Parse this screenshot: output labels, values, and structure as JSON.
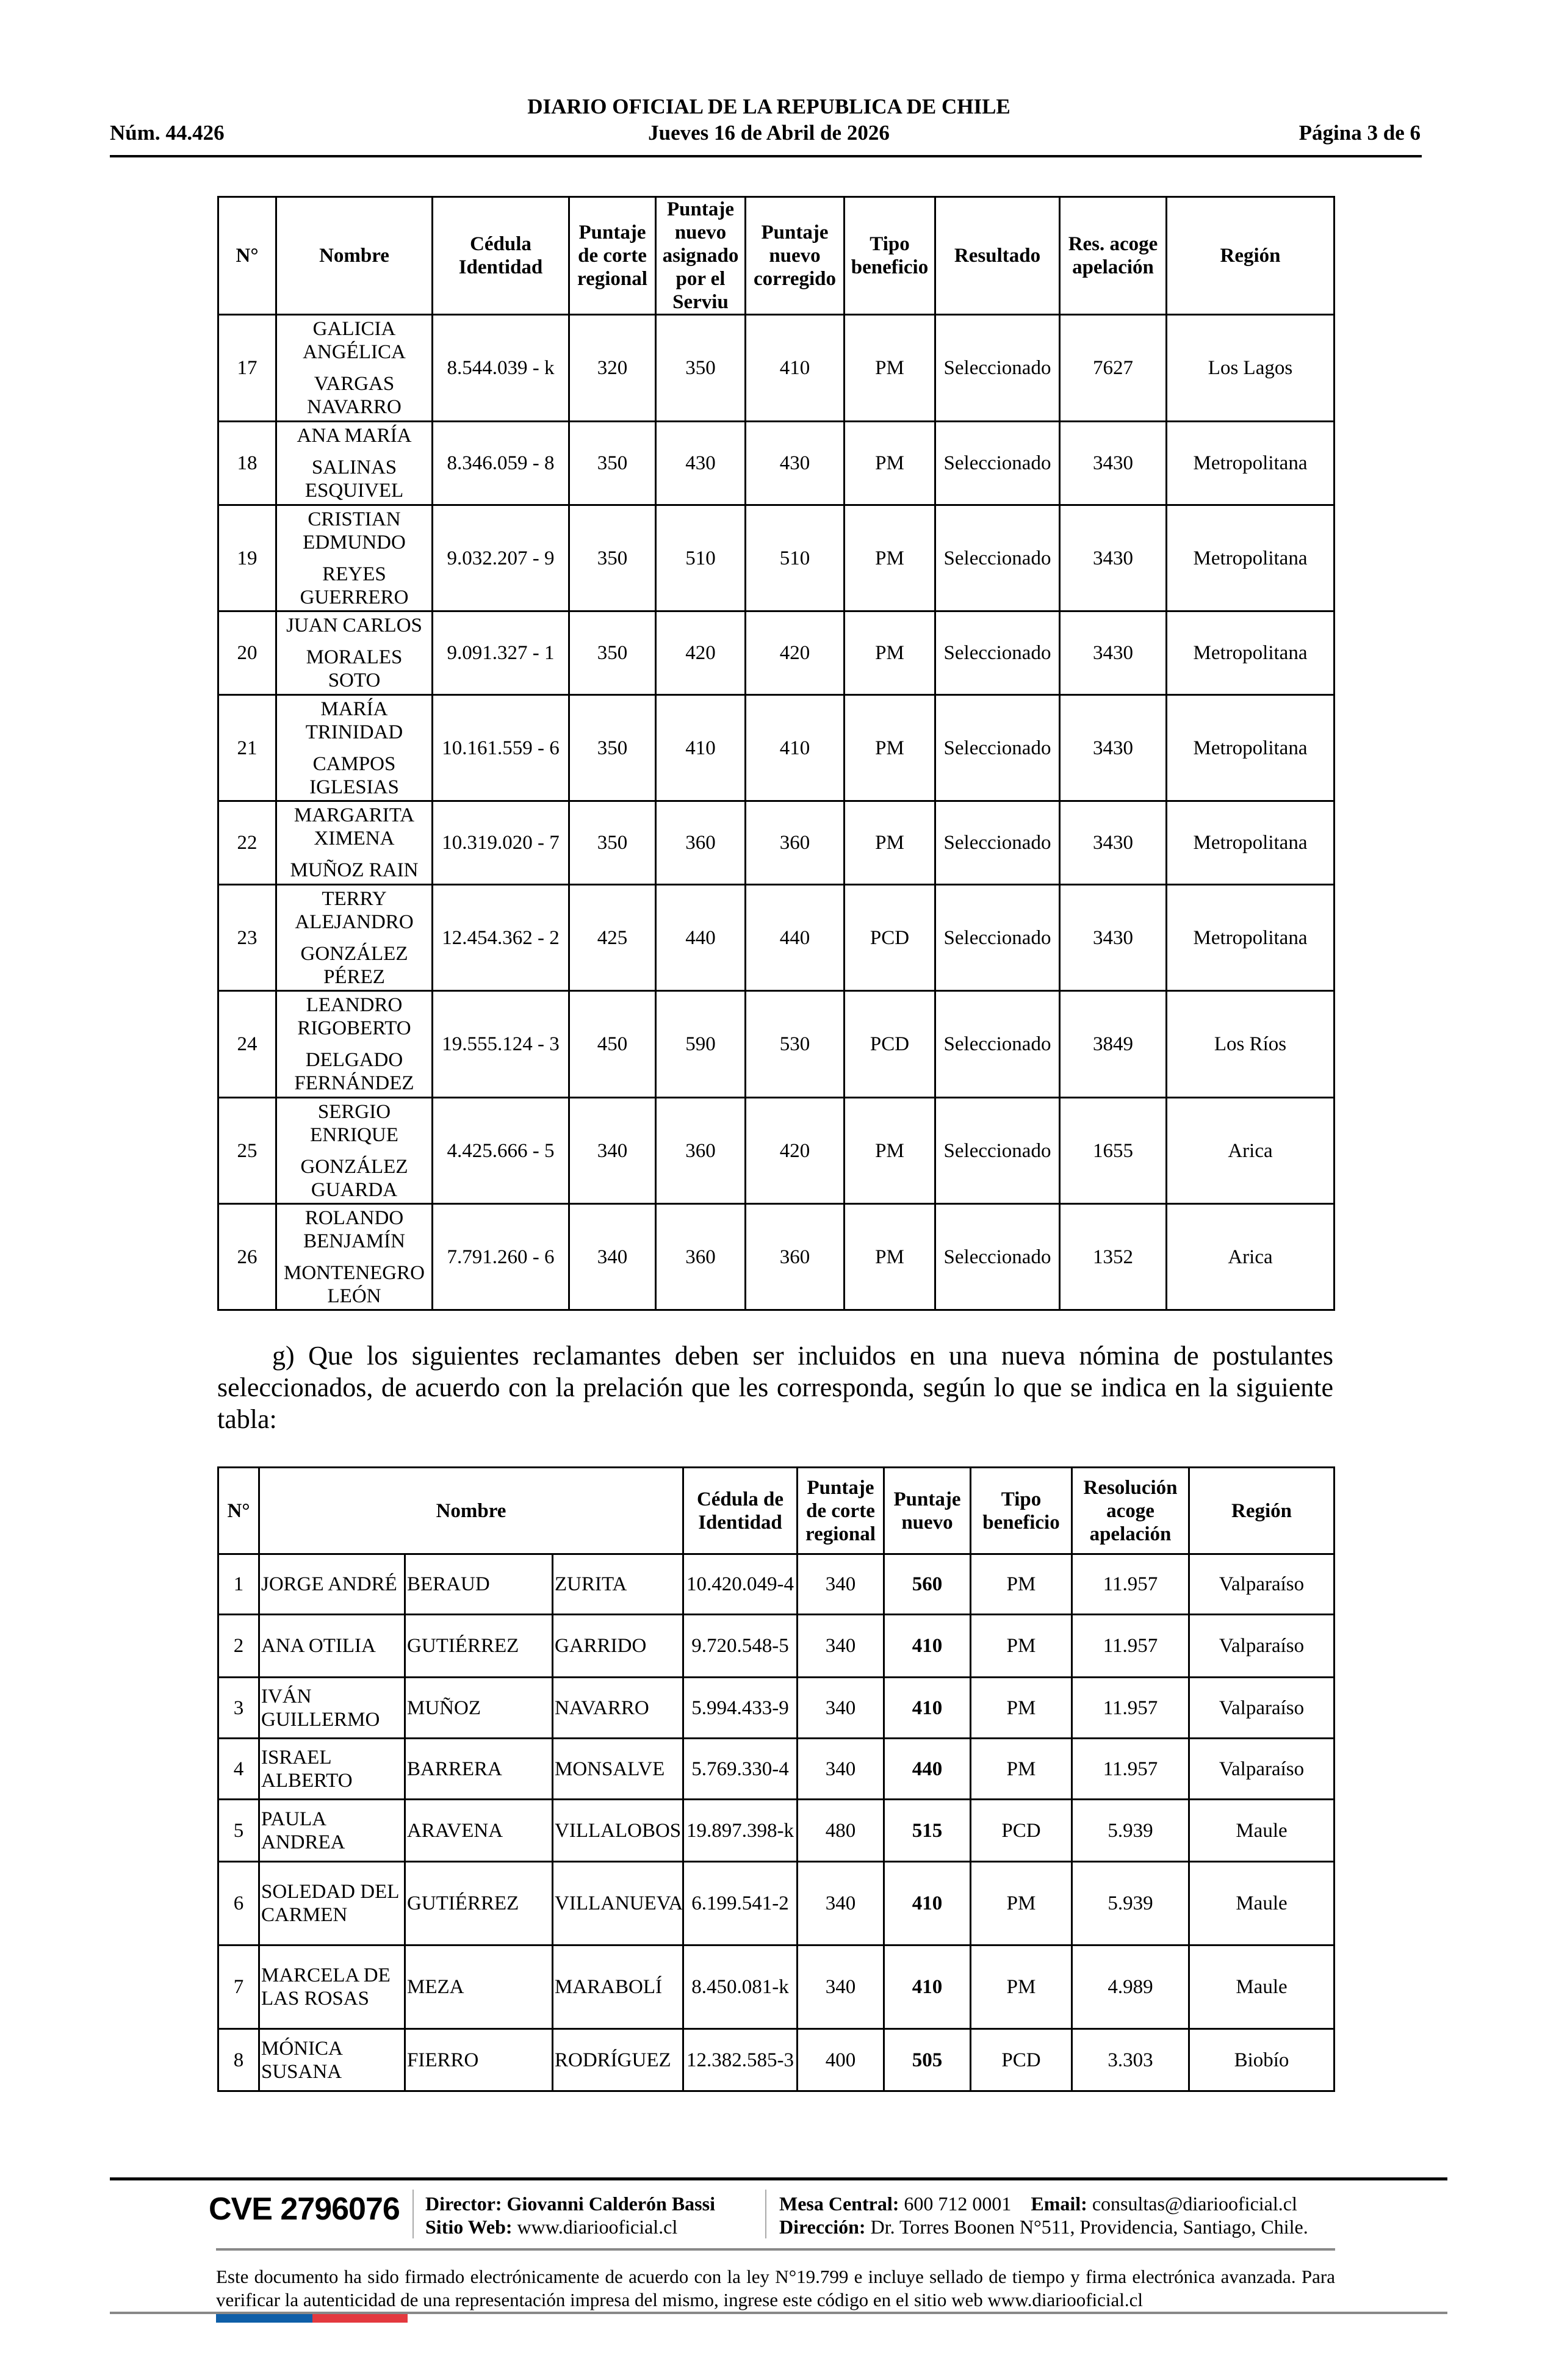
{
  "header": {
    "number": "Núm. 44.426",
    "title": "DIARIO OFICIAL DE LA REPUBLICA DE CHILE",
    "date": "Jueves 16 de Abril de 2026",
    "page": "Página 3 de 6"
  },
  "table1": {
    "headers": [
      "N°",
      "Nombre",
      "Cédula Identidad",
      "Puntaje de corte regional",
      "Puntaje nuevo asignado por el Serviu",
      "Puntaje nuevo corregido",
      "Tipo beneficio",
      "Resultado",
      "Res. acoge apelación",
      "Región"
    ],
    "rows": [
      {
        "n": "17",
        "first": "GALICIA ANGÉLICA",
        "last": "VARGAS NAVARRO",
        "ci": "8.544.039 - k",
        "corte": "320",
        "asignado": "350",
        "corregido": "410",
        "tipo": "PM",
        "resultado": "Seleccionado",
        "res": "7627",
        "region": "Los Lagos"
      },
      {
        "n": "18",
        "first": "ANA MARÍA",
        "last": "SALINAS ESQUIVEL",
        "ci": "8.346.059 - 8",
        "corte": "350",
        "asignado": "430",
        "corregido": "430",
        "tipo": "PM",
        "resultado": "Seleccionado",
        "res": "3430",
        "region": "Metropolitana"
      },
      {
        "n": "19",
        "first": "CRISTIAN EDMUNDO",
        "last": "REYES GUERRERO",
        "ci": "9.032.207 - 9",
        "corte": "350",
        "asignado": "510",
        "corregido": "510",
        "tipo": "PM",
        "resultado": "Seleccionado",
        "res": "3430",
        "region": "Metropolitana"
      },
      {
        "n": "20",
        "first": "JUAN CARLOS",
        "last": "MORALES SOTO",
        "ci": "9.091.327 - 1",
        "corte": "350",
        "asignado": "420",
        "corregido": "420",
        "tipo": "PM",
        "resultado": "Seleccionado",
        "res": "3430",
        "region": "Metropolitana"
      },
      {
        "n": "21",
        "first": "MARÍA TRINIDAD",
        "last": "CAMPOS IGLESIAS",
        "ci": "10.161.559 - 6",
        "corte": "350",
        "asignado": "410",
        "corregido": "410",
        "tipo": "PM",
        "resultado": "Seleccionado",
        "res": "3430",
        "region": "Metropolitana"
      },
      {
        "n": "22",
        "first": "MARGARITA XIMENA",
        "last": "MUÑOZ RAIN",
        "ci": "10.319.020 - 7",
        "corte": "350",
        "asignado": "360",
        "corregido": "360",
        "tipo": "PM",
        "resultado": "Seleccionado",
        "res": "3430",
        "region": "Metropolitana"
      },
      {
        "n": "23",
        "first": "TERRY ALEJANDRO",
        "last": "GONZÁLEZ PÉREZ",
        "ci": "12.454.362 - 2",
        "corte": "425",
        "asignado": "440",
        "corregido": "440",
        "tipo": "PCD",
        "resultado": "Seleccionado",
        "res": "3430",
        "region": "Metropolitana"
      },
      {
        "n": "24",
        "first": "LEANDRO RIGOBERTO",
        "last": "DELGADO FERNÁNDEZ",
        "ci": "19.555.124 - 3",
        "corte": "450",
        "asignado": "590",
        "corregido": "530",
        "tipo": "PCD",
        "resultado": "Seleccionado",
        "res": "3849",
        "region": "Los Ríos"
      },
      {
        "n": "25",
        "first": "SERGIO ENRIQUE",
        "last": "GONZÁLEZ GUARDA",
        "ci": "4.425.666 - 5",
        "corte": "340",
        "asignado": "360",
        "corregido": "420",
        "tipo": "PM",
        "resultado": "Seleccionado",
        "res": "1655",
        "region": "Arica"
      },
      {
        "n": "26",
        "first": "ROLANDO BENJAMÍN",
        "last": "MONTENEGRO LEÓN",
        "ci": "7.791.260 - 6",
        "corte": "340",
        "asignado": "360",
        "corregido": "360",
        "tipo": "PM",
        "resultado": "Seleccionado",
        "res": "1352",
        "region": "Arica"
      }
    ]
  },
  "paragraph": "g) Que los siguientes reclamantes deben ser incluidos en una nueva nómina de postulantes seleccionados, de acuerdo con la prelación que les corresponda, según lo que se indica en la siguiente tabla:",
  "table2": {
    "headers": [
      "N°",
      "Nombre",
      "Cédula de Identidad",
      "Puntaje de corte regional",
      "Puntaje nuevo",
      "Tipo beneficio",
      "Resolución acoge apelación",
      "Región"
    ],
    "rows": [
      {
        "n": "1",
        "first": "JORGE ANDRÉ",
        "last1": "BERAUD",
        "last2": "ZURITA",
        "ci": "10.420.049-4",
        "corte": "340",
        "nuevo": "560",
        "tipo": "PM",
        "res": "11.957",
        "region": "Valparaíso"
      },
      {
        "n": "2",
        "first": "ANA OTILIA",
        "last1": "GUTIÉRREZ",
        "last2": "GARRIDO",
        "ci": "9.720.548-5",
        "corte": "340",
        "nuevo": "410",
        "tipo": "PM",
        "res": "11.957",
        "region": "Valparaíso"
      },
      {
        "n": "3",
        "first": "IVÁN GUILLERMO",
        "last1": "MUÑOZ",
        "last2": "NAVARRO",
        "ci": "5.994.433-9",
        "corte": "340",
        "nuevo": "410",
        "tipo": "PM",
        "res": "11.957",
        "region": "Valparaíso"
      },
      {
        "n": "4",
        "first": "ISRAEL ALBERTO",
        "last1": "BARRERA",
        "last2": "MONSALVE",
        "ci": "5.769.330-4",
        "corte": "340",
        "nuevo": "440",
        "tipo": "PM",
        "res": "11.957",
        "region": "Valparaíso"
      },
      {
        "n": "5",
        "first": "PAULA ANDREA",
        "last1": "ARAVENA",
        "last2": "VILLALOBOS",
        "ci": "19.897.398-k",
        "corte": "480",
        "nuevo": "515",
        "tipo": "PCD",
        "res": "5.939",
        "region": "Maule"
      },
      {
        "n": "6",
        "first": "SOLEDAD DEL CARMEN",
        "last1": "GUTIÉRREZ",
        "last2": "VILLANUEVA",
        "ci": "6.199.541-2",
        "corte": "340",
        "nuevo": "410",
        "tipo": "PM",
        "res": "5.939",
        "region": "Maule"
      },
      {
        "n": "7",
        "first": "MARCELA DE LAS ROSAS",
        "last1": "MEZA",
        "last2": "MARABOLÍ",
        "ci": "8.450.081-k",
        "corte": "340",
        "nuevo": "410",
        "tipo": "PM",
        "res": "4.989",
        "region": "Maule"
      },
      {
        "n": "8",
        "first": "MÓNICA SUSANA",
        "last1": "FIERRO",
        "last2": "RODRÍGUEZ",
        "ci": "12.382.585-3",
        "corte": "400",
        "nuevo": "505",
        "tipo": "PCD",
        "res": "3.303",
        "region": "Biobío"
      }
    ]
  },
  "footer": {
    "cve": "CVE 2796076",
    "director_label": "Director:",
    "director": "Giovanni Calderón Bassi",
    "web_label": "Sitio Web:",
    "web": "www.diariooficial.cl",
    "mesa_label": "Mesa Central:",
    "mesa": "600 712 0001",
    "email_label": "Email:",
    "email": "consultas@diariooficial.cl",
    "address_label": "Dirección:",
    "address": "Dr. Torres Boonen N°511, Providencia, Santiago, Chile.",
    "disclaimer": "Este documento ha sido firmado electrónicamente de acuerdo con la ley N°19.799 e incluye sellado de tiempo y firma electrónica avanzada. Para verificar la autenticidad de una representación impresa del mismo, ingrese este código en el sitio web www.diariooficial.cl",
    "flag_colors": [
      "#0f5fa8",
      "#e3393f"
    ]
  }
}
